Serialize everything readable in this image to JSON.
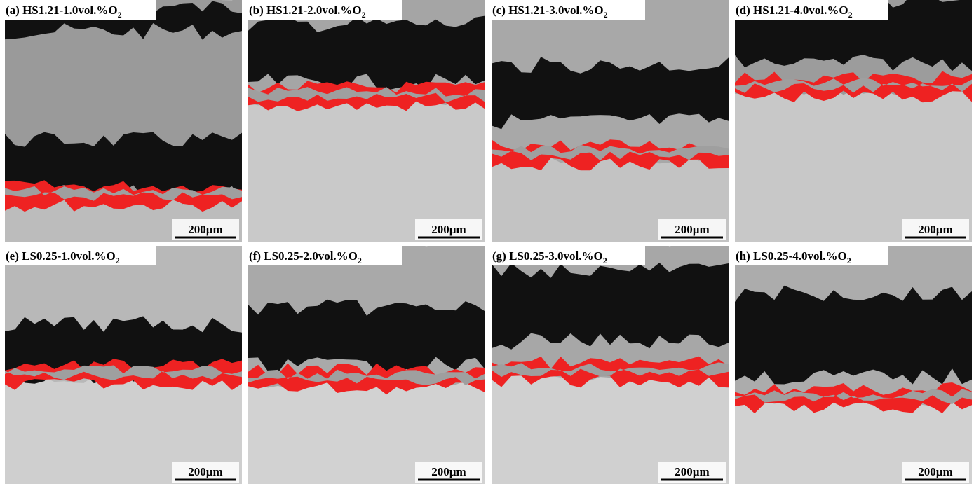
{
  "panels": [
    {
      "label": "(a) HS1.21-1.0vol.%O",
      "subscript": "2",
      "scale": "200µm"
    },
    {
      "label": "(b) HS1.21-2.0vol.%O",
      "subscript": "2",
      "scale": "200µm"
    },
    {
      "label": "(c) HS1.21-3.0vol.%O",
      "subscript": "2",
      "scale": "200µm"
    },
    {
      "label": "(d) HS1.21-4.0vol.%O",
      "subscript": "2",
      "scale": "200µm"
    },
    {
      "label": "(e) LS0.25-1.0vol.%O",
      "subscript": "2",
      "scale": "200µm"
    },
    {
      "label": "(f) LS0.25-2.0vol.%O",
      "subscript": "2",
      "scale": "200µm"
    },
    {
      "label": "(g) LS0.25-3.0vol.%O",
      "subscript": "2",
      "scale": "200µm"
    },
    {
      "label": "(h) LS0.25-4.0vol.%O",
      "subscript": "2",
      "scale": "200µm"
    }
  ]
}
